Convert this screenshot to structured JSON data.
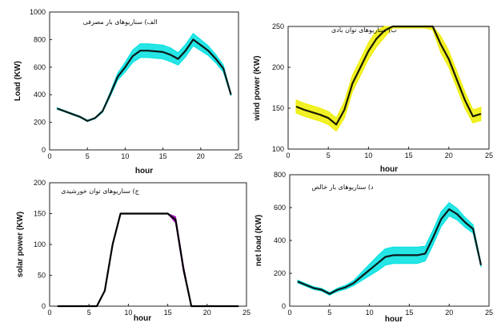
{
  "chart_data": [
    {
      "type": "line",
      "title": "الف) سناریوهای بار مصرفی",
      "xlabel": "hour",
      "ylabel": "Load (KW)",
      "xlim": [
        0,
        25
      ],
      "ylim": [
        0,
        1000
      ],
      "xticks": [
        0,
        5,
        10,
        15,
        20,
        25
      ],
      "yticks": [
        0,
        200,
        400,
        600,
        800,
        1000
      ],
      "grid": false,
      "band_color": "#00e0e0",
      "line_color": "#0a1a1a",
      "x": [
        1,
        2,
        3,
        4,
        5,
        6,
        7,
        8,
        9,
        10,
        11,
        12,
        13,
        14,
        15,
        16,
        17,
        18,
        19,
        20,
        21,
        22,
        23,
        24
      ],
      "values": [
        300,
        280,
        260,
        240,
        210,
        230,
        280,
        400,
        530,
        600,
        680,
        720,
        720,
        715,
        710,
        690,
        660,
        720,
        800,
        760,
        720,
        660,
        590,
        400
      ],
      "band_halfwidth": [
        5,
        5,
        5,
        5,
        5,
        5,
        8,
        15,
        25,
        35,
        45,
        50,
        50,
        50,
        50,
        50,
        45,
        45,
        45,
        40,
        35,
        30,
        25,
        10
      ]
    },
    {
      "type": "line",
      "title": "ب) سناریوهای توان بادی",
      "xlabel": "hour",
      "ylabel": "wind power (KW)",
      "xlim": [
        0,
        25
      ],
      "ylim": [
        100,
        250
      ],
      "xticks": [
        0,
        5,
        10,
        15,
        20,
        25
      ],
      "yticks": [
        100,
        150,
        200,
        250
      ],
      "grid": false,
      "band_color": "#eeee00",
      "line_color": "#1a1a00",
      "x": [
        1,
        2,
        3,
        4,
        5,
        6,
        7,
        8,
        9,
        10,
        11,
        12,
        13,
        14,
        15,
        16,
        17,
        18,
        19,
        20,
        21,
        22,
        23,
        24
      ],
      "values": [
        152,
        148,
        145,
        142,
        138,
        130,
        148,
        180,
        200,
        220,
        235,
        245,
        250,
        250,
        250,
        250,
        250,
        250,
        228,
        210,
        185,
        160,
        140,
        143
      ],
      "band_halfwidth": [
        8,
        8,
        8,
        8,
        8,
        8,
        10,
        10,
        10,
        10,
        10,
        8,
        2,
        2,
        2,
        2,
        2,
        4,
        10,
        10,
        10,
        10,
        8,
        8
      ]
    },
    {
      "type": "line",
      "title": "ج) سناریوهای توان خورشیدی",
      "xlabel": "hour",
      "ylabel": "solar power (KW)",
      "xlim": [
        0,
        25
      ],
      "ylim": [
        0,
        200
      ],
      "xticks": [
        0,
        5,
        10,
        15,
        20,
        25
      ],
      "yticks": [
        0,
        50,
        100,
        150,
        200
      ],
      "grid": false,
      "band_color": "#a000c0",
      "line_color": "#000000",
      "x": [
        1,
        2,
        3,
        4,
        5,
        6,
        7,
        8,
        9,
        10,
        11,
        12,
        13,
        14,
        15,
        16,
        17,
        18,
        19,
        20,
        21,
        22,
        23,
        24
      ],
      "values": [
        0,
        0,
        0,
        0,
        0,
        0,
        25,
        100,
        150,
        150,
        150,
        150,
        150,
        150,
        150,
        140,
        60,
        0,
        0,
        0,
        0,
        0,
        0,
        0
      ],
      "band_halfwidth": [
        0,
        0,
        0,
        0,
        0,
        0,
        0,
        0,
        0,
        0,
        0,
        0,
        0,
        0,
        0,
        5,
        5,
        0,
        0,
        0,
        0,
        0,
        0,
        0
      ]
    },
    {
      "type": "line",
      "title": "د) سناریوهای بار خالص",
      "xlabel": "hour",
      "ylabel": "net load (KW)",
      "xlim": [
        0,
        25
      ],
      "ylim": [
        0,
        800
      ],
      "xticks": [
        0,
        5,
        10,
        15,
        20,
        25
      ],
      "yticks": [
        0,
        200,
        400,
        600,
        800
      ],
      "grid": false,
      "band_color": "#00e0e0",
      "line_color": "#0a1a1a",
      "x": [
        1,
        2,
        3,
        4,
        5,
        6,
        7,
        8,
        9,
        10,
        11,
        12,
        13,
        14,
        15,
        16,
        17,
        18,
        19,
        20,
        21,
        22,
        23,
        24
      ],
      "values": [
        150,
        130,
        110,
        100,
        75,
        100,
        115,
        140,
        180,
        220,
        260,
        300,
        310,
        310,
        310,
        310,
        320,
        420,
        530,
        590,
        560,
        510,
        470,
        250
      ],
      "band_halfwidth": [
        8,
        8,
        8,
        8,
        8,
        10,
        12,
        15,
        25,
        35,
        45,
        50,
        50,
        50,
        50,
        50,
        45,
        45,
        45,
        40,
        35,
        30,
        25,
        12
      ]
    }
  ]
}
